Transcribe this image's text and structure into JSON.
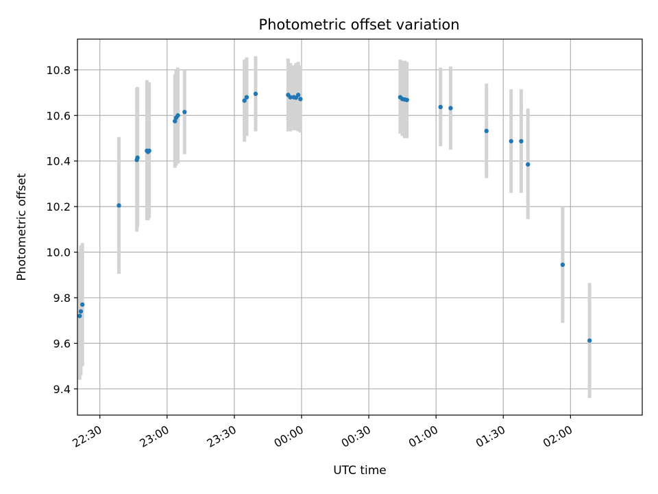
{
  "chart_data": {
    "type": "scatter",
    "title": "Photometric offset variation",
    "xlabel": "UTC time",
    "ylabel": "Photometric offset",
    "x_axis_type": "time",
    "x_reference": "22:00",
    "xlim": [
      "22:20",
      "02:32"
    ],
    "ylim": [
      9.285,
      10.935
    ],
    "xticks": [
      "22:30",
      "23:00",
      "23:30",
      "00:00",
      "00:30",
      "01:00",
      "01:30",
      "02:00"
    ],
    "yticks": [
      9.4,
      9.6,
      9.8,
      10.0,
      10.2,
      10.4,
      10.6,
      10.8
    ],
    "grid": true,
    "colors": {
      "point": "#1f77b4",
      "errorbar": "#d3d3d3"
    },
    "points": [
      {
        "t": "22:21.0",
        "y": 9.72,
        "err_low": 9.44,
        "err_high": 10.0
      },
      {
        "t": "22:21.5",
        "y": 9.74,
        "err_low": 9.46,
        "err_high": 10.03
      },
      {
        "t": "22:22.2",
        "y": 9.77,
        "err_low": 9.5,
        "err_high": 10.04
      },
      {
        "t": "22:38.5",
        "y": 10.205,
        "err_low": 9.905,
        "err_high": 10.505
      },
      {
        "t": "22:46.5",
        "y": 10.405,
        "err_low": 10.09,
        "err_high": 10.72
      },
      {
        "t": "22:46.8",
        "y": 10.415,
        "err_low": 10.11,
        "err_high": 10.725
      },
      {
        "t": "22:51.0",
        "y": 10.445,
        "err_low": 10.14,
        "err_high": 10.755
      },
      {
        "t": "22:51.5",
        "y": 10.44,
        "err_low": 10.14,
        "err_high": 10.74
      },
      {
        "t": "22:52.0",
        "y": 10.445,
        "err_low": 10.15,
        "err_high": 10.745
      },
      {
        "t": "23:03.5",
        "y": 10.575,
        "err_low": 10.37,
        "err_high": 10.78
      },
      {
        "t": "23:04.0",
        "y": 10.59,
        "err_low": 10.38,
        "err_high": 10.8
      },
      {
        "t": "23:04.8",
        "y": 10.6,
        "err_low": 10.39,
        "err_high": 10.81
      },
      {
        "t": "23:07.8",
        "y": 10.615,
        "err_low": 10.43,
        "err_high": 10.8
      },
      {
        "t": "23:34.5",
        "y": 10.665,
        "err_low": 10.485,
        "err_high": 10.845
      },
      {
        "t": "23:35.5",
        "y": 10.68,
        "err_low": 10.51,
        "err_high": 10.855
      },
      {
        "t": "23:39.5",
        "y": 10.695,
        "err_low": 10.53,
        "err_high": 10.86
      },
      {
        "t": "23:54.0",
        "y": 10.69,
        "err_low": 10.53,
        "err_high": 10.85
      },
      {
        "t": "23:55.0",
        "y": 10.68,
        "err_low": 10.53,
        "err_high": 10.83
      },
      {
        "t": "23:56.5",
        "y": 10.68,
        "err_low": 10.535,
        "err_high": 10.82
      },
      {
        "t": "23:57.5",
        "y": 10.678,
        "err_low": 10.535,
        "err_high": 10.83
      },
      {
        "t": "23:58.5",
        "y": 10.69,
        "err_low": 10.53,
        "err_high": 10.835
      },
      {
        "t": "23:59.5",
        "y": 10.672,
        "err_low": 10.525,
        "err_high": 10.82
      },
      {
        "t": "00:44.0",
        "y": 10.68,
        "err_low": 10.52,
        "err_high": 10.845
      },
      {
        "t": "00:45.0",
        "y": 10.672,
        "err_low": 10.51,
        "err_high": 10.84
      },
      {
        "t": "00:46.0",
        "y": 10.67,
        "err_low": 10.5,
        "err_high": 10.84
      },
      {
        "t": "00:47.0",
        "y": 10.668,
        "err_low": 10.5,
        "err_high": 10.835
      },
      {
        "t": "01:02.0",
        "y": 10.637,
        "err_low": 10.465,
        "err_high": 10.81
      },
      {
        "t": "01:06.5",
        "y": 10.632,
        "err_low": 10.45,
        "err_high": 10.815
      },
      {
        "t": "01:22.5",
        "y": 10.532,
        "err_low": 10.325,
        "err_high": 10.74
      },
      {
        "t": "01:33.5",
        "y": 10.487,
        "err_low": 10.26,
        "err_high": 10.715
      },
      {
        "t": "01:38.0",
        "y": 10.487,
        "err_low": 10.26,
        "err_high": 10.715
      },
      {
        "t": "01:41.0",
        "y": 10.385,
        "err_low": 10.145,
        "err_high": 10.63
      },
      {
        "t": "01:56.5",
        "y": 9.945,
        "err_low": 9.69,
        "err_high": 10.2
      },
      {
        "t": "02:08.5",
        "y": 9.612,
        "err_low": 9.36,
        "err_high": 9.865
      }
    ]
  }
}
